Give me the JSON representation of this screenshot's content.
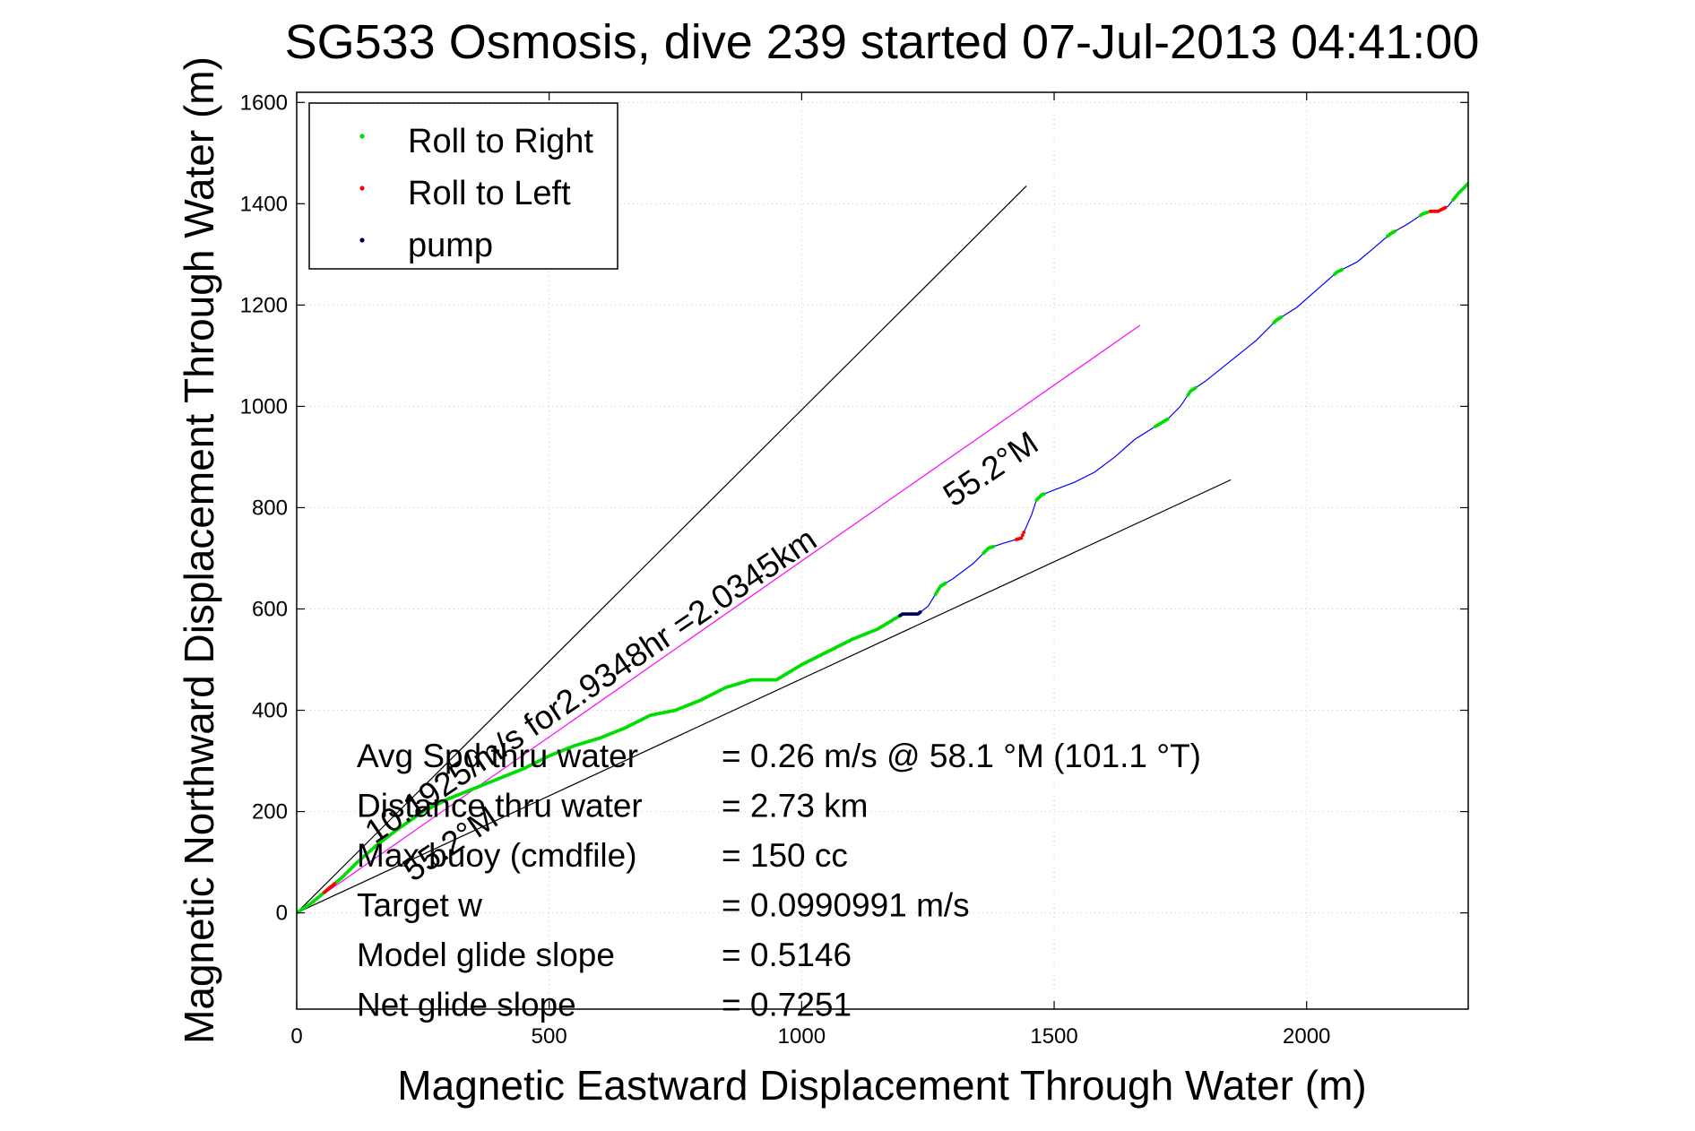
{
  "chart_data": {
    "type": "scatter",
    "title": "SG533 Osmosis, dive 239 started 07-Jul-2013 04:41:00",
    "xlabel": "Magnetic Eastward Displacement Through Water (m)",
    "ylabel": "Magnetic Northward Displacement Through Water (m)",
    "xlim": [
      0,
      2320
    ],
    "ylim": [
      -190,
      1620
    ],
    "xticks": [
      0,
      500,
      1000,
      1500,
      2000
    ],
    "yticks": [
      0,
      200,
      400,
      600,
      800,
      1000,
      1200,
      1400,
      1600
    ],
    "grid": true,
    "legend_position": "top-left",
    "legend": [
      {
        "label": "Roll to Right",
        "color": "#00dd00"
      },
      {
        "label": "Roll to Left",
        "color": "#ff0000"
      },
      {
        "label": "pump",
        "color": "#000066"
      }
    ],
    "track": {
      "name": "",
      "color": "#0000ff",
      "x": [
        0,
        30,
        60,
        90,
        120,
        160,
        200,
        250,
        300,
        350,
        400,
        450,
        500,
        550,
        600,
        650,
        700,
        750,
        800,
        850,
        900,
        950,
        1000,
        1050,
        1100,
        1150,
        1200,
        1230,
        1250,
        1275,
        1300,
        1340,
        1370,
        1400,
        1435,
        1455,
        1465,
        1475,
        1500,
        1540,
        1580,
        1620,
        1660,
        1700,
        1725,
        1750,
        1770,
        1800,
        1850,
        1900,
        1940,
        1980,
        2020,
        2060,
        2100,
        2130,
        2165,
        2200,
        2230,
        2245,
        2260,
        2270,
        2280,
        2300,
        2320
      ],
      "y": [
        0,
        20,
        45,
        70,
        100,
        135,
        165,
        200,
        225,
        245,
        265,
        285,
        310,
        330,
        345,
        365,
        390,
        400,
        420,
        445,
        460,
        460,
        490,
        515,
        540,
        560,
        590,
        590,
        605,
        645,
        660,
        690,
        720,
        730,
        740,
        785,
        815,
        825,
        835,
        850,
        870,
        900,
        935,
        960,
        975,
        1000,
        1030,
        1050,
        1090,
        1130,
        1170,
        1195,
        1230,
        1265,
        1285,
        1310,
        1340,
        1360,
        1380,
        1385,
        1385,
        1390,
        1395,
        1420,
        1440
      ]
    },
    "roll_right_segments": [
      [
        0,
        1200
      ],
      [
        1265,
        1285
      ],
      [
        1360,
        1380
      ],
      [
        1465,
        1480
      ],
      [
        1700,
        1725
      ],
      [
        1765,
        1780
      ],
      [
        1935,
        1950
      ],
      [
        2055,
        2070
      ],
      [
        2160,
        2175
      ],
      [
        2225,
        2240
      ],
      [
        2290,
        2320
      ]
    ],
    "roll_left_segments": [
      [
        55,
        75
      ],
      [
        1425,
        1440
      ],
      [
        2245,
        2275
      ]
    ],
    "pump_segments": [
      [
        1195,
        1235
      ]
    ],
    "reference_lines": [
      {
        "name": "",
        "color": "#000000",
        "x": [
          0,
          1445
        ],
        "y": [
          0,
          1435
        ]
      },
      {
        "name": "",
        "color": "#000000",
        "x": [
          0,
          1850
        ],
        "y": [
          0,
          855
        ]
      },
      {
        "name": "",
        "color": "#ff00ff",
        "x": [
          0,
          1670
        ],
        "y": [
          0,
          1160
        ]
      }
    ],
    "annotations": [
      {
        "text": "10.1925/m/s for2.9348hr =2.0345km",
        "x": 155,
        "y": 135,
        "angle_deg": -34
      },
      {
        "text": "55.2°M",
        "x": 1300,
        "y": 800,
        "angle_deg": -34
      },
      {
        "text": "55.2°M",
        "x": 230,
        "y": 60,
        "angle_deg": -34
      }
    ],
    "stats": [
      {
        "label": "Avg Spd thru water",
        "value": "=  0.26 m/s @  58.1 °M (101.1 °T)"
      },
      {
        "label": "Distance thru water",
        "value": "=  2.73 km"
      },
      {
        "label": "Max buoy (cmdfile)",
        "value": "= 150 cc"
      },
      {
        "label": "Target w",
        "value": "= 0.0990991 m/s"
      },
      {
        "label": "Model glide slope",
        "value": "= 0.5146"
      },
      {
        "label": "Net glide slope",
        "value": "= 0.7251"
      }
    ]
  }
}
